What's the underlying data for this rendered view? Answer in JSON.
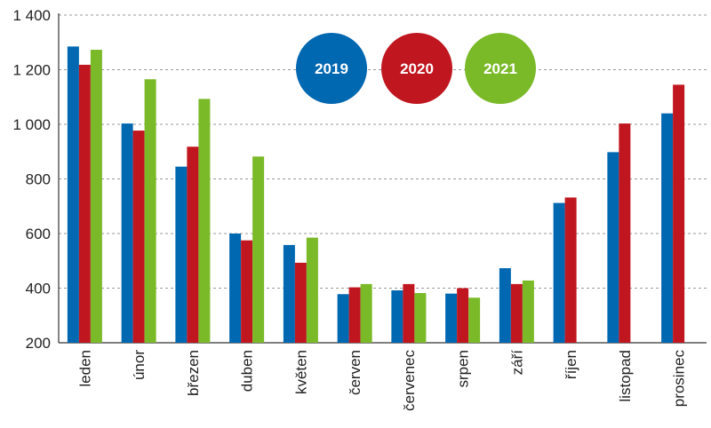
{
  "chart_data": {
    "type": "bar",
    "title": "",
    "xlabel": "",
    "ylabel": "",
    "ylim": [
      200,
      1400
    ],
    "yticks": [
      200,
      400,
      600,
      800,
      1000,
      1200,
      1400
    ],
    "ytick_labels": [
      "200",
      "400",
      "600",
      "800",
      "1 000",
      "1 200",
      "1 400"
    ],
    "grid": true,
    "legend_position": "top-center",
    "categories": [
      "leden",
      "únor",
      "březen",
      "duben",
      "květen",
      "červen",
      "červenec",
      "srpen",
      "září",
      "říjen",
      "listopad",
      "prosinec"
    ],
    "series": [
      {
        "name": "2019",
        "color": "#0067b1",
        "values": [
          1285,
          1003,
          845,
          600,
          558,
          378,
          392,
          380,
          473,
          712,
          898,
          1040
        ]
      },
      {
        "name": "2020",
        "color": "#c0161f",
        "values": [
          1218,
          977,
          918,
          575,
          493,
          403,
          415,
          400,
          415,
          732,
          1003,
          1145
        ]
      },
      {
        "name": "2021",
        "color": "#7ab928",
        "values": [
          1273,
          1165,
          1093,
          882,
          585,
          415,
          382,
          365,
          428,
          null,
          null,
          null
        ]
      }
    ]
  }
}
